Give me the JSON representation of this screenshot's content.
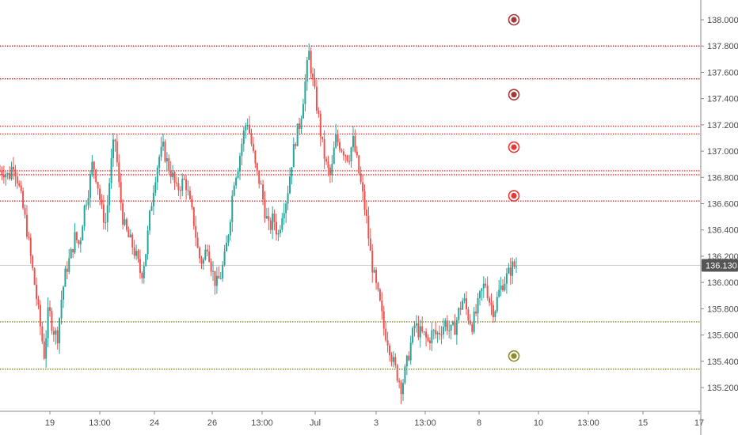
{
  "chart_data": {
    "type": "candlestick",
    "symbol_price_scale": {
      "ylim": [
        135.1,
        138.12
      ],
      "y_ticks": [
        "135.200",
        "135.400",
        "135.600",
        "135.800",
        "136.000",
        "136.200",
        "136.400",
        "136.600",
        "136.800",
        "137.000",
        "137.200",
        "137.400",
        "137.600",
        "137.800",
        "138.000"
      ],
      "last_price_label": "136.130",
      "last_price": 136.13
    },
    "x_ticks": [
      "19",
      "13:00",
      "24",
      "26",
      "13:00",
      "Jul",
      "3",
      "13:00",
      "8",
      "10",
      "13:00",
      "15",
      "17"
    ],
    "horizontal_levels": [
      {
        "price": 137.8,
        "color": "#c62828",
        "style": "dotted"
      },
      {
        "price": 137.55,
        "color": "#c62828",
        "style": "dotted"
      },
      {
        "price": 137.19,
        "color": "#e53935",
        "style": "dotted"
      },
      {
        "price": 137.13,
        "color": "#e53935",
        "style": "dotted"
      },
      {
        "price": 136.85,
        "color": "#e53935",
        "style": "dotted"
      },
      {
        "price": 136.82,
        "color": "#e53935",
        "style": "dotted"
      },
      {
        "price": 136.62,
        "color": "#e53935",
        "style": "dotted"
      },
      {
        "price": 135.7,
        "color": "#8d8d2a",
        "style": "dotted"
      },
      {
        "price": 135.34,
        "color": "#8d8d2a",
        "style": "dotted"
      }
    ],
    "markers": [
      {
        "price": 138.0,
        "color": "#a23a3a"
      },
      {
        "price": 137.43,
        "color": "#a23a3a"
      },
      {
        "price": 137.03,
        "color": "#e53935"
      },
      {
        "price": 136.66,
        "color": "#e53935"
      },
      {
        "price": 135.44,
        "color": "#8d8d2a"
      }
    ],
    "path_close": [
      136.85,
      136.85,
      136.8,
      136.92,
      136.78,
      136.6,
      136.42,
      136.18,
      135.95,
      135.7,
      135.45,
      135.8,
      135.65,
      135.58,
      135.9,
      136.1,
      136.2,
      136.35,
      136.28,
      136.55,
      136.7,
      136.92,
      136.78,
      136.55,
      136.45,
      136.85,
      137.12,
      136.72,
      136.45,
      136.35,
      136.28,
      136.18,
      136.05,
      136.22,
      136.52,
      136.78,
      136.95,
      137.02,
      136.9,
      136.82,
      136.7,
      136.75,
      136.78,
      136.6,
      136.45,
      136.2,
      136.15,
      136.3,
      136.1,
      135.98,
      136.05,
      136.2,
      136.45,
      136.78,
      136.9,
      137.1,
      137.25,
      137.05,
      136.85,
      136.75,
      136.55,
      136.4,
      136.5,
      136.35,
      136.55,
      136.65,
      136.9,
      137.1,
      137.22,
      137.48,
      137.75,
      137.5,
      137.3,
      137.05,
      136.88,
      136.8,
      137.1,
      137.05,
      137.0,
      136.95,
      137.08,
      136.9,
      136.7,
      136.5,
      136.2,
      136.0,
      135.85,
      135.65,
      135.55,
      135.4,
      135.3,
      135.2,
      135.35,
      135.52,
      135.68,
      135.62,
      135.6,
      135.55,
      135.62,
      135.6,
      135.65,
      135.7,
      135.62,
      135.65,
      135.78,
      135.88,
      135.75,
      135.68,
      135.78,
      135.92,
      136.0,
      135.85,
      135.78,
      135.92,
      136.0,
      136.05,
      136.12,
      136.13
    ],
    "path_x_range": [
      0,
      652
    ],
    "colors": {
      "up": "#26a69a",
      "down": "#ef5350",
      "last_price_line": "#cccccc",
      "badge": "#555555",
      "axis_line": "#888888"
    }
  }
}
